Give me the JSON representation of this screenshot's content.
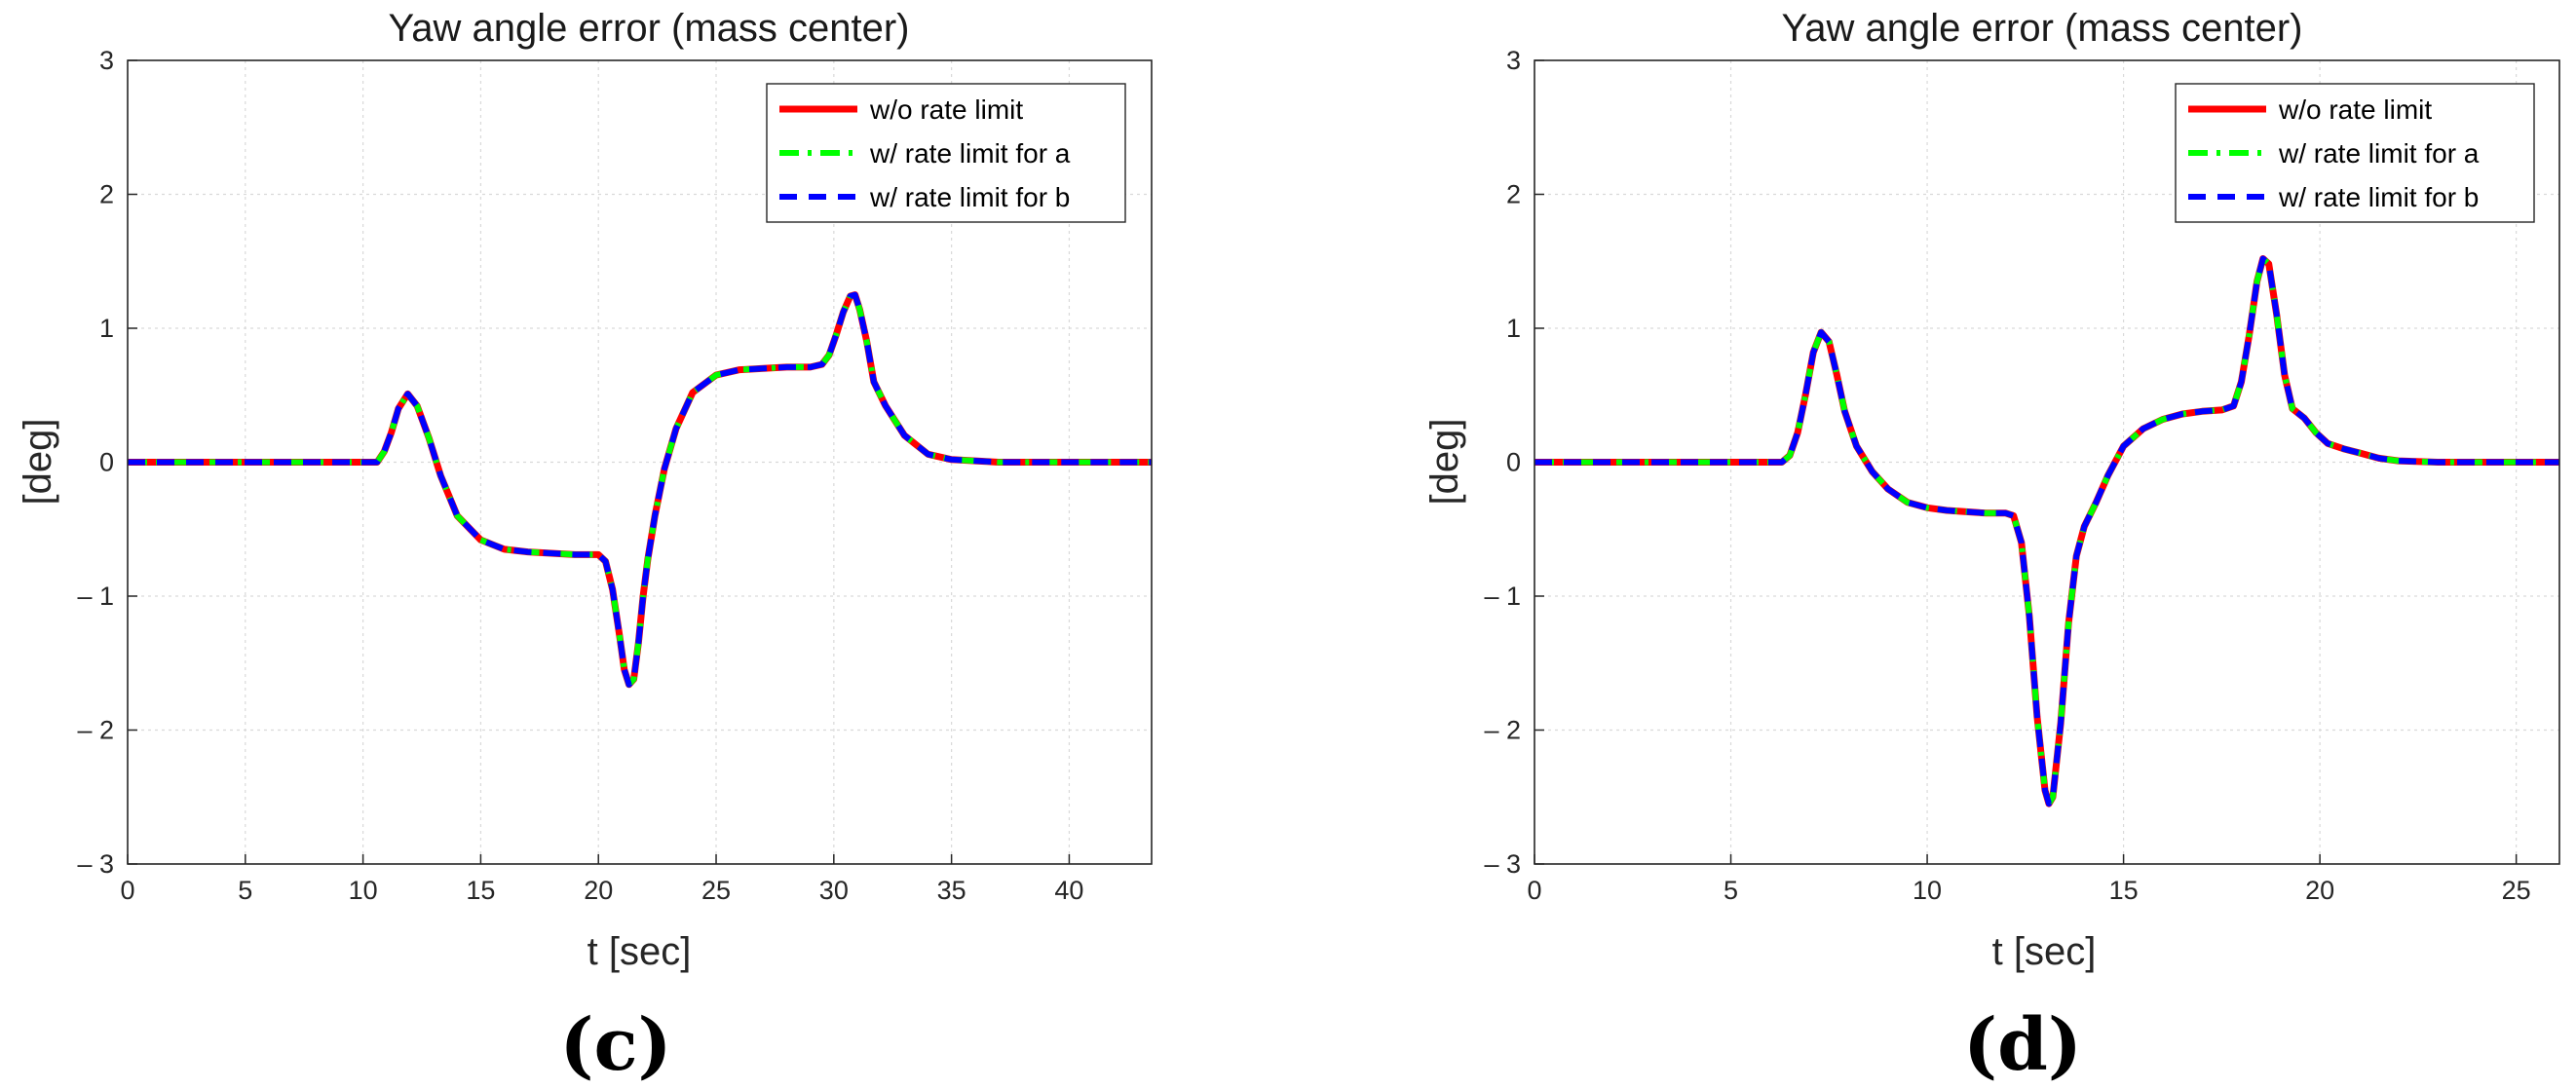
{
  "chart_data": [
    {
      "type": "line",
      "panel_label": "(c)",
      "title": "Yaw angle error (mass center)",
      "xlabel": "t [sec]",
      "ylabel": "[deg]",
      "xlim": [
        0,
        43.5
      ],
      "ylim": [
        -3,
        3
      ],
      "xticks": [
        0,
        5,
        10,
        15,
        20,
        25,
        30,
        35,
        40
      ],
      "yticks": [
        -3,
        -2,
        -1,
        0,
        1,
        2,
        3
      ],
      "ytick_labels": [
        "– 3",
        "– 2",
        "– 1",
        "0",
        "1",
        "2",
        "3"
      ],
      "grid": true,
      "legend_position": "top-right",
      "series": [
        {
          "name": "w/o rate limit",
          "color": "#ff0000",
          "style": "solid"
        },
        {
          "name": "w/ rate limit for a",
          "color": "#00ff00",
          "style": "dashdot"
        },
        {
          "name": "w/ rate limit for b",
          "color": "#0000ff",
          "style": "dashed"
        }
      ],
      "x": [
        0,
        10.6,
        10.9,
        11.2,
        11.5,
        11.9,
        12.3,
        12.8,
        13.3,
        14,
        15,
        16,
        17,
        18,
        19,
        20,
        20.3,
        20.6,
        20.9,
        21.1,
        21.3,
        21.5,
        21.7,
        21.9,
        22.1,
        22.4,
        22.8,
        23.3,
        24,
        25,
        26,
        27,
        28,
        29,
        29.5,
        29.8,
        30.1,
        30.4,
        30.7,
        30.9,
        31.1,
        31.4,
        31.7,
        32.2,
        33,
        34,
        35,
        36,
        37,
        40,
        43.5
      ],
      "y": [
        0,
        0,
        0.08,
        0.22,
        0.4,
        0.51,
        0.42,
        0.18,
        -0.1,
        -0.4,
        -0.58,
        -0.65,
        -0.67,
        -0.68,
        -0.69,
        -0.69,
        -0.74,
        -0.95,
        -1.3,
        -1.55,
        -1.66,
        -1.62,
        -1.35,
        -1.0,
        -0.72,
        -0.4,
        -0.05,
        0.25,
        0.52,
        0.65,
        0.69,
        0.7,
        0.71,
        0.71,
        0.73,
        0.8,
        0.95,
        1.12,
        1.24,
        1.25,
        1.14,
        0.9,
        0.6,
        0.42,
        0.2,
        0.06,
        0.02,
        0.01,
        0,
        0,
        0
      ]
    },
    {
      "type": "line",
      "panel_label": "(d)",
      "title": "Yaw angle error (mass center)",
      "xlabel": "t [sec]",
      "ylabel": "[deg]",
      "xlim": [
        0,
        26.1
      ],
      "ylim": [
        -3,
        3
      ],
      "xticks": [
        0,
        5,
        10,
        15,
        20,
        25
      ],
      "yticks": [
        -3,
        -2,
        -1,
        0,
        1,
        2,
        3
      ],
      "ytick_labels": [
        "– 3",
        "– 2",
        "– 1",
        "0",
        "1",
        "2",
        "3"
      ],
      "grid": true,
      "legend_position": "top-right",
      "series": [
        {
          "name": "w/o rate limit",
          "color": "#ff0000",
          "style": "solid"
        },
        {
          "name": "w/ rate limit for a",
          "color": "#00ff00",
          "style": "dashdot"
        },
        {
          "name": "w/ rate limit for b",
          "color": "#0000ff",
          "style": "dashed"
        }
      ],
      "x": [
        0,
        6.3,
        6.5,
        6.7,
        6.9,
        7.1,
        7.3,
        7.5,
        7.7,
        7.9,
        8.2,
        8.6,
        9,
        9.5,
        10,
        10.5,
        11,
        11.5,
        12,
        12.2,
        12.4,
        12.6,
        12.8,
        13,
        13.1,
        13.2,
        13.4,
        13.6,
        13.8,
        14,
        14.3,
        14.6,
        15,
        15.5,
        16,
        16.5,
        17,
        17.5,
        17.8,
        18,
        18.2,
        18.4,
        18.55,
        18.7,
        18.9,
        19.1,
        19.3,
        19.6,
        19.9,
        20.2,
        20.6,
        21,
        21.5,
        22,
        23,
        24,
        26.1
      ],
      "y": [
        0,
        0,
        0.05,
        0.22,
        0.5,
        0.82,
        0.97,
        0.9,
        0.65,
        0.38,
        0.12,
        -0.07,
        -0.2,
        -0.3,
        -0.34,
        -0.36,
        -0.37,
        -0.38,
        -0.38,
        -0.4,
        -0.6,
        -1.15,
        -1.9,
        -2.45,
        -2.55,
        -2.5,
        -1.95,
        -1.2,
        -0.7,
        -0.48,
        -0.3,
        -0.1,
        0.12,
        0.25,
        0.32,
        0.36,
        0.38,
        0.39,
        0.42,
        0.6,
        0.95,
        1.35,
        1.52,
        1.48,
        1.1,
        0.65,
        0.4,
        0.33,
        0.22,
        0.14,
        0.1,
        0.07,
        0.03,
        0.01,
        0,
        0,
        0
      ]
    }
  ]
}
